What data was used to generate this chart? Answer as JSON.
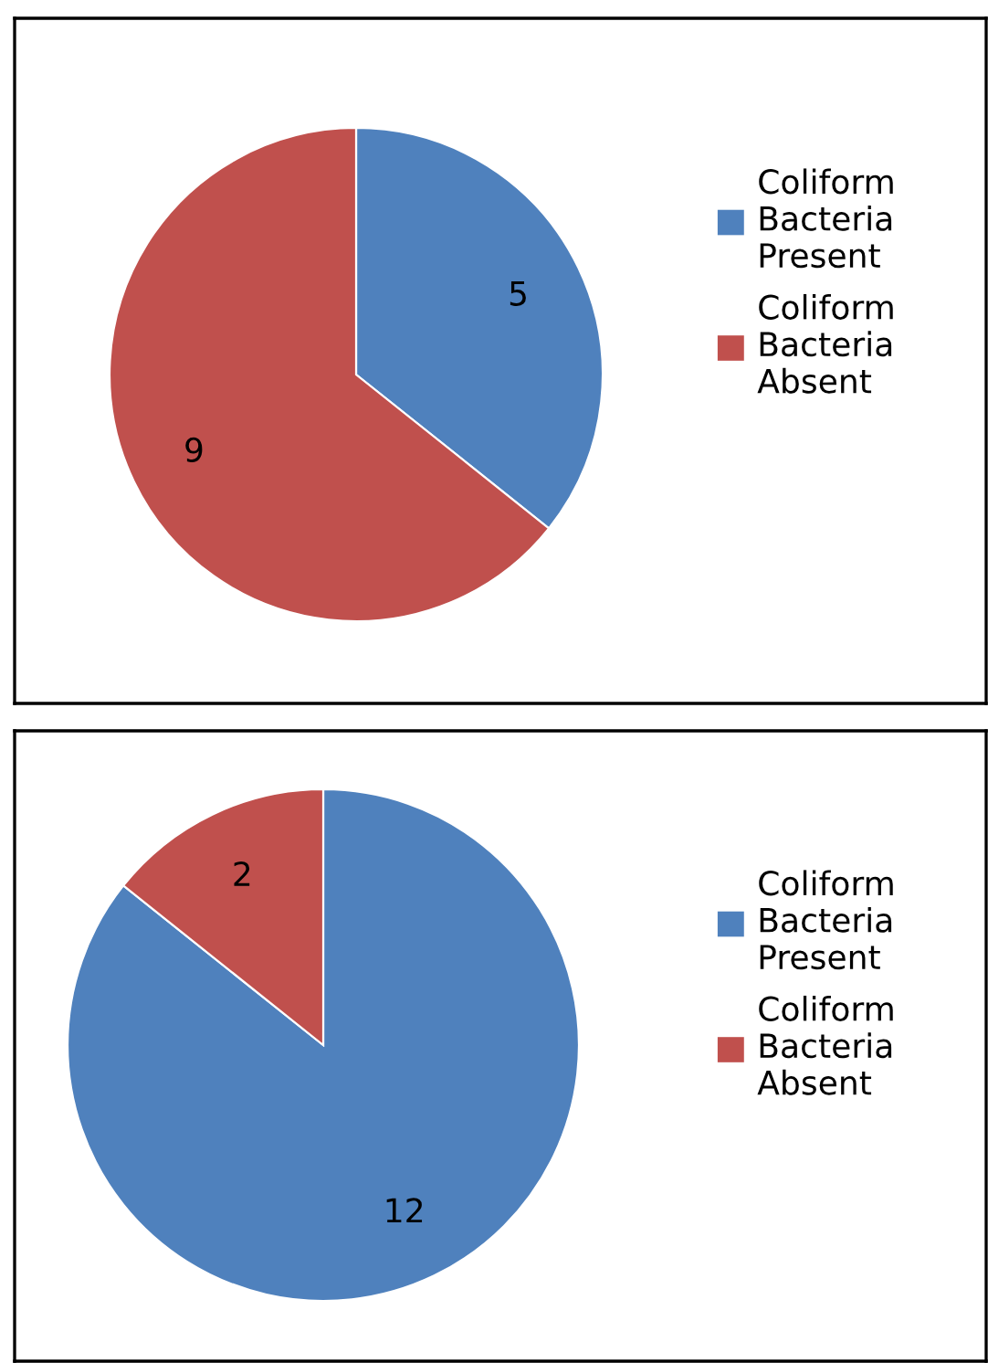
{
  "chart_data": [
    {
      "type": "pie",
      "categories": [
        "Coliform Bacteria Present",
        "Coliform Bacteria Absent"
      ],
      "values": [
        5,
        9
      ],
      "colors": [
        "#4f81bd",
        "#c0504d"
      ],
      "data_labels": true,
      "legend": "right"
    },
    {
      "type": "pie",
      "categories": [
        "Coliform Bacteria Present",
        "Coliform Bacteria Absent"
      ],
      "values": [
        12,
        2
      ],
      "colors": [
        "#4f81bd",
        "#c0504d"
      ],
      "data_labels": true,
      "legend": "right"
    }
  ]
}
